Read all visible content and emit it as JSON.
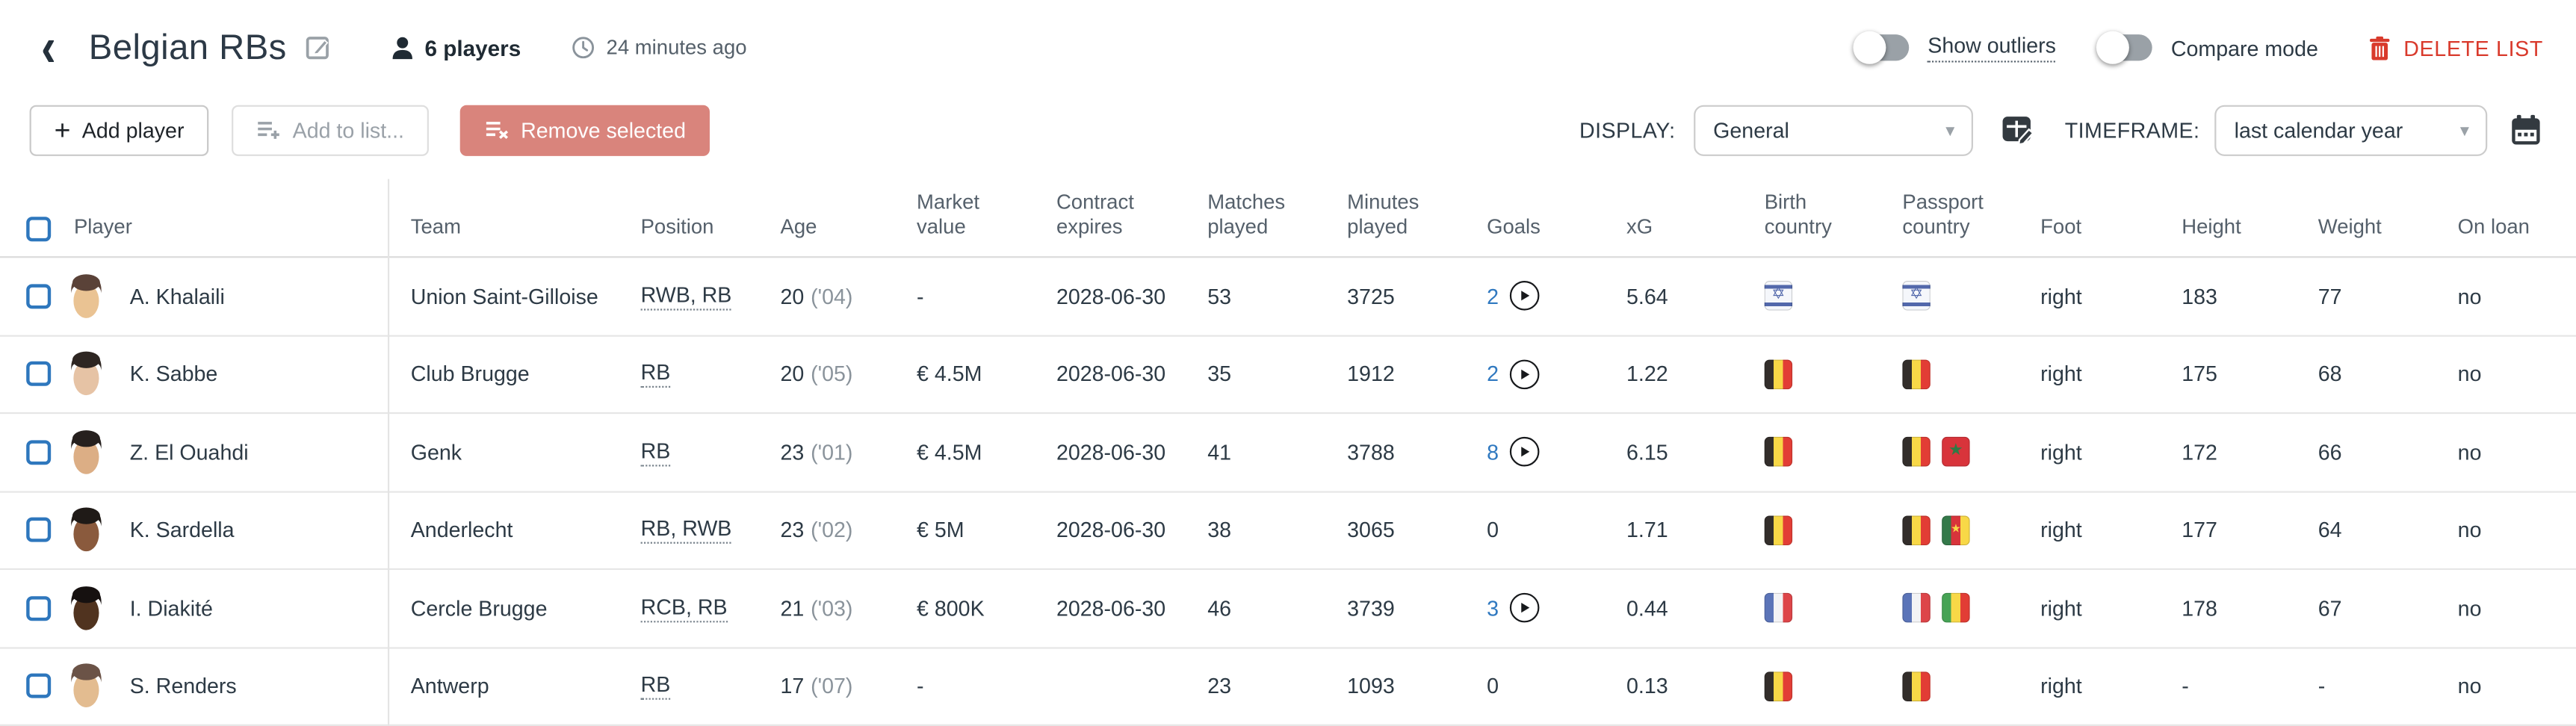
{
  "header": {
    "title": "Belgian RBs",
    "players_count": "6 players",
    "updated": "24 minutes ago",
    "show_outliers_label": "Show outliers",
    "show_outliers_on": false,
    "compare_mode_label": "Compare mode",
    "compare_mode_on": false,
    "delete_list_label": "DELETE LIST"
  },
  "toolbar": {
    "add_player_label": "Add player",
    "add_to_list_label": "Add to list...",
    "remove_selected_label": "Remove selected",
    "display_label": "DISPLAY:",
    "display_value": "General",
    "timeframe_label": "TIMEFRAME:",
    "timeframe_value": "last calendar year"
  },
  "icons": {
    "back": "‹",
    "plus": "+",
    "caret": "▾",
    "star": "★",
    "star_of_david": "✡"
  },
  "colors": {
    "accent_blue": "#2e77bd",
    "link_blue": "#3079c0",
    "danger_red": "#d93a2c",
    "remove_btn_salmon": "#d9847c",
    "text_dark": "#2d3a45",
    "text_muted": "#55606b"
  },
  "table": {
    "columns": [
      "Player",
      "Team",
      "Position",
      "Age",
      "Market value",
      "Contract expires",
      "Matches played",
      "Minutes played",
      "Goals",
      "xG",
      "Birth country",
      "Passport country",
      "Foot",
      "Height",
      "Weight",
      "On loan"
    ],
    "players": [
      {
        "name": "A. Khalaili",
        "team": "Union Saint-Gilloise",
        "position": "RWB, RB",
        "age": "20",
        "birth_year": "('04)",
        "market_value": "-",
        "contract_expires": "2028-06-30",
        "matches_played": "53",
        "minutes_played": "3725",
        "goals": "2",
        "goals_video": true,
        "xg": "5.64",
        "birth_country": [
          "IL"
        ],
        "passport_country": [
          "IL"
        ],
        "foot": "right",
        "height": "183",
        "weight": "77",
        "on_loan": "no",
        "avatar": {
          "hair": "#5a4238",
          "skin": "#eac393"
        }
      },
      {
        "name": "K. Sabbe",
        "team": "Club Brugge",
        "position": "RB",
        "age": "20",
        "birth_year": "('05)",
        "market_value": "€ 4.5M",
        "contract_expires": "2028-06-30",
        "matches_played": "35",
        "minutes_played": "1912",
        "goals": "2",
        "goals_video": true,
        "xg": "1.22",
        "birth_country": [
          "BE"
        ],
        "passport_country": [
          "BE"
        ],
        "foot": "right",
        "height": "175",
        "weight": "68",
        "on_loan": "no",
        "avatar": {
          "hair": "#2e2622",
          "skin": "#e6c3a5"
        }
      },
      {
        "name": "Z. El Ouahdi",
        "team": "Genk",
        "position": "RB",
        "age": "23",
        "birth_year": "('01)",
        "market_value": "€ 4.5M",
        "contract_expires": "2028-06-30",
        "matches_played": "41",
        "minutes_played": "3788",
        "goals": "8",
        "goals_video": true,
        "xg": "6.15",
        "birth_country": [
          "BE"
        ],
        "passport_country": [
          "BE",
          "MA"
        ],
        "foot": "right",
        "height": "172",
        "weight": "66",
        "on_loan": "no",
        "avatar": {
          "hair": "#26201e",
          "skin": "#dcae85"
        }
      },
      {
        "name": "K. Sardella",
        "team": "Anderlecht",
        "position": "RB, RWB",
        "age": "23",
        "birth_year": "('02)",
        "market_value": "€ 5M",
        "contract_expires": "2028-06-30",
        "matches_played": "38",
        "minutes_played": "3065",
        "goals": "0",
        "goals_video": false,
        "xg": "1.71",
        "birth_country": [
          "BE"
        ],
        "passport_country": [
          "BE",
          "CM"
        ],
        "foot": "right",
        "height": "177",
        "weight": "64",
        "on_loan": "no",
        "avatar": {
          "hair": "#1f1a17",
          "skin": "#8a5a3d"
        }
      },
      {
        "name": "I. Diakité",
        "team": "Cercle Brugge",
        "position": "RCB, RB",
        "age": "21",
        "birth_year": "('03)",
        "market_value": "€ 800K",
        "contract_expires": "2028-06-30",
        "matches_played": "46",
        "minutes_played": "3739",
        "goals": "3",
        "goals_video": true,
        "xg": "0.44",
        "birth_country": [
          "FR"
        ],
        "passport_country": [
          "FR",
          "ML"
        ],
        "foot": "right",
        "height": "178",
        "weight": "67",
        "on_loan": "no",
        "avatar": {
          "hair": "#161110",
          "skin": "#50331f"
        }
      },
      {
        "name": "S. Renders",
        "team": "Antwerp",
        "position": "RB",
        "age": "17",
        "birth_year": "('07)",
        "market_value": "-",
        "contract_expires": "",
        "matches_played": "23",
        "minutes_played": "1093",
        "goals": "0",
        "goals_video": false,
        "xg": "0.13",
        "birth_country": [
          "BE"
        ],
        "passport_country": [
          "BE"
        ],
        "foot": "right",
        "height": "-",
        "weight": "-",
        "on_loan": "no",
        "avatar": {
          "hair": "#6b5347",
          "skin": "#e3bc90"
        }
      }
    ]
  }
}
